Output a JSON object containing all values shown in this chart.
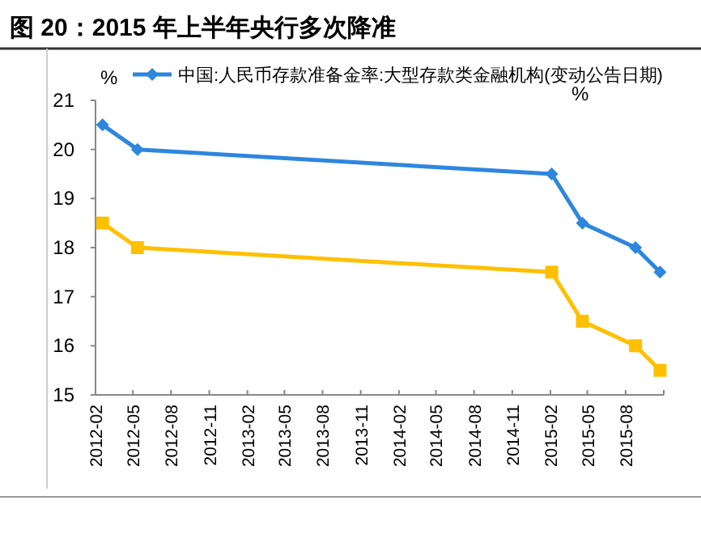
{
  "chart_data": {
    "type": "line",
    "title": "图 20：2015 年上半年央行多次降准",
    "ylabel": "%",
    "annotations": [
      "%"
    ],
    "series": [
      {
        "name": "中国:人民币存款准备金率:大型存款类金融机构(变动公告日期)",
        "color": "#2e86de",
        "marker": "diamond",
        "x": [
          "2012-02-18",
          "2012-05-12",
          "2015-02-04",
          "2015-04-19",
          "2015-08-25",
          "2015-10-23"
        ],
        "values": [
          20.5,
          20,
          19.5,
          18.5,
          18,
          17.5
        ]
      },
      {
        "color": "#ffc000",
        "marker": "square",
        "x": [
          "2012-02-18",
          "2012-05-12",
          "2015-02-04",
          "2015-04-19",
          "2015-08-25",
          "2015-10-23"
        ],
        "values": [
          18.5,
          18,
          17.5,
          16.5,
          16,
          15.5
        ]
      }
    ],
    "xlim": [
      "2012-02",
      "2015-11"
    ],
    "xticks": [
      "2012-02",
      "2012-05",
      "2012-08",
      "2012-11",
      "2013-02",
      "2013-05",
      "2013-08",
      "2013-11",
      "2014-02",
      "2014-05",
      "2014-08",
      "2014-11",
      "2015-02",
      "2015-05",
      "2015-08",
      {
        "value": "2015-11",
        "label": null
      }
    ],
    "ylim": [
      15,
      21
    ],
    "yticks": [
      15,
      16,
      17,
      18,
      19,
      20,
      21
    ],
    "grid": false,
    "legend": "top"
  }
}
